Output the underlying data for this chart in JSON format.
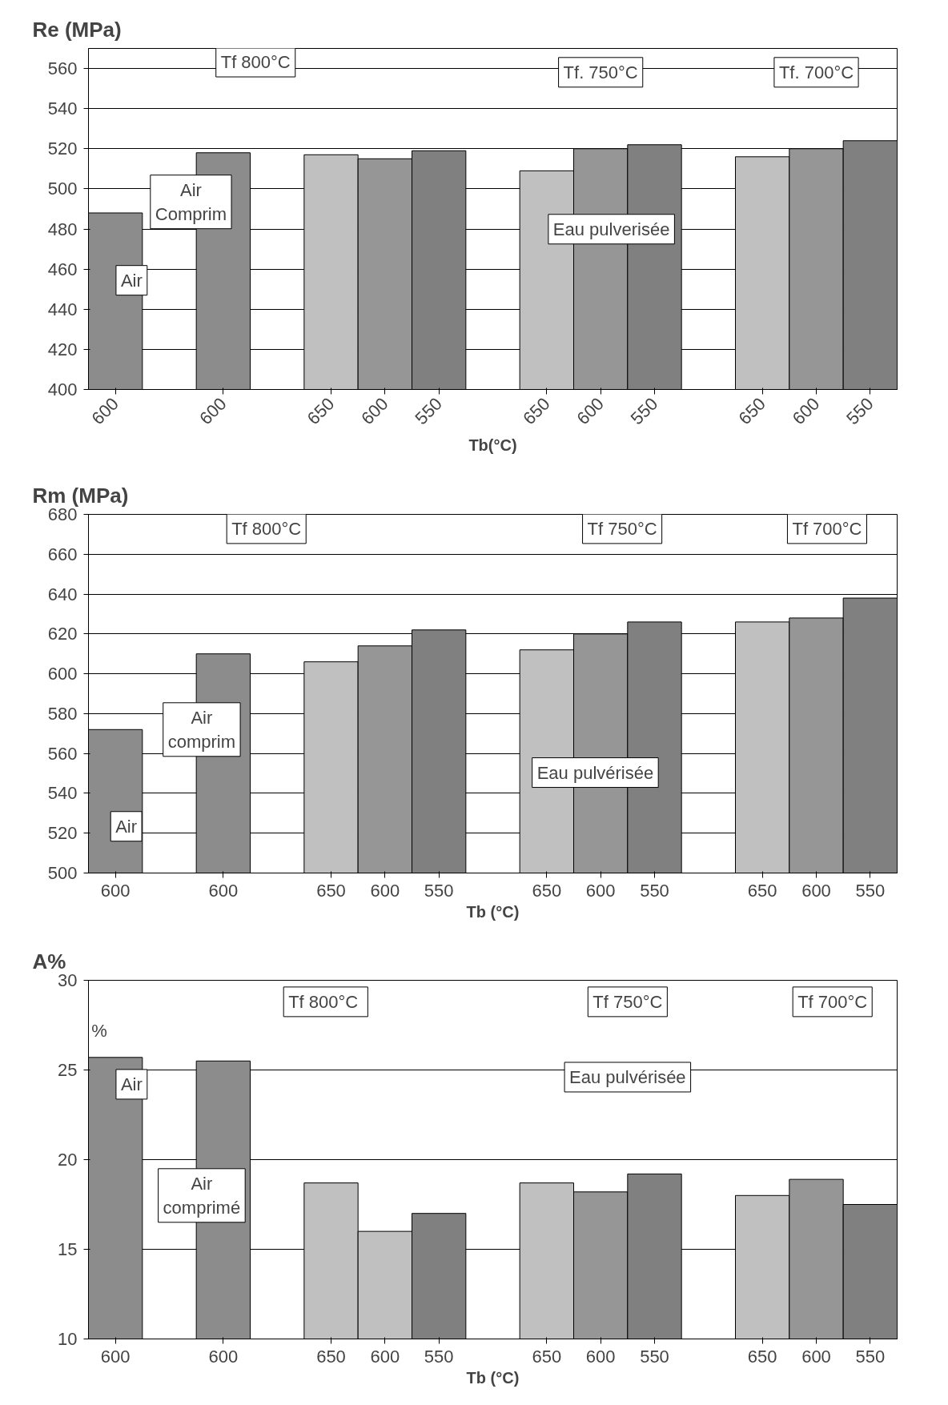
{
  "chart_data": [
    {
      "type": "bar",
      "ylabel": "Re (MPa)",
      "xlabel": "Tb(°C)",
      "categories": [
        "600",
        null,
        "600",
        null,
        "650",
        "600",
        "550",
        null,
        "650",
        "600",
        "550",
        null,
        "650",
        "600",
        "550"
      ],
      "values": [
        488,
        null,
        518,
        null,
        517,
        515,
        519,
        null,
        509,
        520,
        522,
        null,
        516,
        520,
        524
      ],
      "colors": [
        "#8c8c8c",
        "#ffffff",
        "#8c8c8c",
        "#ffffff",
        "#c0c0c0",
        "#969696",
        "#808080",
        "#ffffff",
        "#c0c0c0",
        "#969696",
        "#808080",
        "#ffffff",
        "#c0c0c0",
        "#969696",
        "#808080"
      ],
      "ylim": [
        400,
        570
      ],
      "yticks": [
        400,
        420,
        440,
        460,
        480,
        500,
        520,
        540,
        560
      ],
      "grid": "y",
      "annotations": [
        "Tf 800°C",
        "Tf. 750°C",
        "Tf. 700°C",
        "Air",
        "Air\nComprim",
        "Eau pulverisée"
      ]
    },
    {
      "type": "bar",
      "ylabel": "Rm  (MPa)",
      "xlabel": "Tb (°C)",
      "categories": [
        "600",
        null,
        "600",
        null,
        "650",
        "600",
        "550",
        null,
        "650",
        "600",
        "550",
        null,
        "650",
        "600",
        "550"
      ],
      "values": [
        572,
        null,
        610,
        null,
        606,
        614,
        622,
        null,
        612,
        620,
        626,
        null,
        626,
        628,
        638
      ],
      "colors": [
        "#8c8c8c",
        "#ffffff",
        "#8c8c8c",
        "#ffffff",
        "#c0c0c0",
        "#969696",
        "#808080",
        "#ffffff",
        "#c0c0c0",
        "#969696",
        "#808080",
        "#ffffff",
        "#c0c0c0",
        "#969696",
        "#808080"
      ],
      "ylim": [
        500,
        680
      ],
      "yticks": [
        500,
        520,
        540,
        560,
        580,
        600,
        620,
        640,
        660,
        680
      ],
      "grid": "y",
      "annotations": [
        "Tf 800°C",
        "Tf 750°C",
        "Tf 700°C",
        "Air",
        "Air\ncomprim",
        "Eau pulvérisée"
      ]
    },
    {
      "type": "bar",
      "ylabel": "A%",
      "xlabel": "Tb (°C)",
      "categories": [
        "600",
        null,
        "600",
        null,
        "650",
        "600",
        "550",
        null,
        "650",
        "600",
        "550",
        null,
        "650",
        "600",
        "550"
      ],
      "values": [
        25.7,
        null,
        25.5,
        null,
        18.7,
        16.0,
        17.0,
        null,
        18.7,
        18.2,
        19.2,
        null,
        18.0,
        18.9,
        17.5
      ],
      "colors": [
        "#8c8c8c",
        "#ffffff",
        "#8c8c8c",
        "#ffffff",
        "#c0c0c0",
        "#c0c0c0",
        "#808080",
        "#ffffff",
        "#c0c0c0",
        "#969696",
        "#808080",
        "#ffffff",
        "#c0c0c0",
        "#969696",
        "#808080"
      ],
      "ylim": [
        10,
        30
      ],
      "yticks": [
        10,
        15,
        20,
        25,
        30
      ],
      "grid": "y",
      "annotations": [
        "Tf  800°C",
        "Tf 750°C",
        "Tf 700°C",
        "Air",
        "Air\ncomprimé",
        "Eau pulvérisée",
        "%"
      ]
    }
  ]
}
